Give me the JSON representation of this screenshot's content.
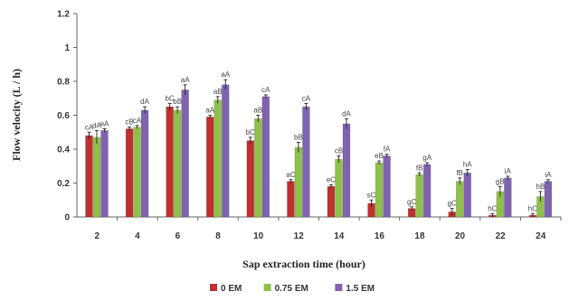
{
  "chart_data": {
    "type": "bar",
    "xlabel": "Sap extraction time (hour)",
    "ylabel": "Flow velocity (L / h)",
    "ylim": [
      0,
      1.2
    ],
    "yticks": [
      "0",
      "0.2",
      "0.4",
      "0.6",
      "0.8",
      "1",
      "1.2"
    ],
    "categories": [
      "2",
      "4",
      "6",
      "8",
      "10",
      "12",
      "14",
      "16",
      "18",
      "20",
      "22",
      "24"
    ],
    "grid": false,
    "legend_position": "bottom",
    "series": [
      {
        "name": "0 EM",
        "color": "#c0302e",
        "values": [
          0.48,
          0.52,
          0.65,
          0.59,
          0.45,
          0.21,
          0.18,
          0.08,
          0.05,
          0.03,
          0.01,
          0.01
        ],
        "errors": [
          0.02,
          0.01,
          0.02,
          0.01,
          0.02,
          0.01,
          0.01,
          0.02,
          0.01,
          0.02,
          0.01,
          0.01
        ],
        "labels": [
          "cA",
          "cB",
          "bC",
          "aA",
          "bC",
          "aC",
          "eC",
          "sC",
          "gC",
          "gC",
          "hC",
          "hC"
        ]
      },
      {
        "name": "0.75 EM",
        "color": "#8fc04a",
        "values": [
          0.47,
          0.53,
          0.63,
          0.69,
          0.58,
          0.41,
          0.34,
          0.32,
          0.25,
          0.21,
          0.15,
          0.12
        ],
        "errors": [
          0.04,
          0.01,
          0.02,
          0.02,
          0.02,
          0.03,
          0.02,
          0.01,
          0.01,
          0.02,
          0.03,
          0.03
        ],
        "labels": [
          "dA",
          "cA",
          "bB",
          "aB",
          "aB",
          "bB",
          "cB",
          "eB",
          "fB",
          "fB",
          "gB",
          "hB"
        ]
      },
      {
        "name": "1.5 EM",
        "color": "#7f63b0",
        "values": [
          0.51,
          0.63,
          0.75,
          0.78,
          0.71,
          0.65,
          0.55,
          0.36,
          0.31,
          0.26,
          0.23,
          0.21
        ],
        "errors": [
          0.01,
          0.02,
          0.03,
          0.03,
          0.01,
          0.02,
          0.03,
          0.01,
          0.01,
          0.02,
          0.01,
          0.01
        ],
        "labels": [
          "eA",
          "dA",
          "aA",
          "aA",
          "cA",
          "cA",
          "dA",
          "fA",
          "gA",
          "hA",
          "iA",
          "iA"
        ]
      }
    ]
  }
}
